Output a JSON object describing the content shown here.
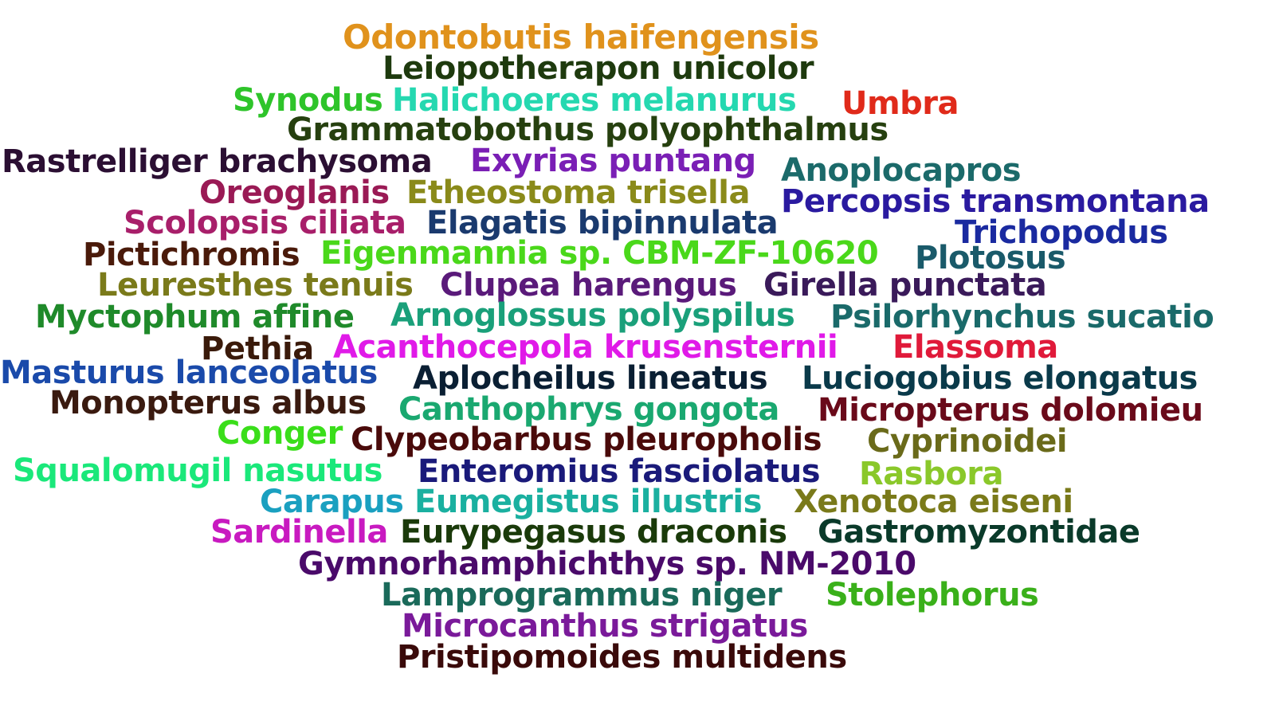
{
  "words": [
    {
      "text": "Odontobutis haifengensis",
      "color": "#e0921c"
    },
    {
      "text": "Leiopotherapon unicolor",
      "color": "#1e3a0e"
    },
    {
      "text": "Synodus",
      "color": "#2ec42a"
    },
    {
      "text": "Halichoeres melanurus",
      "color": "#25d8b0"
    },
    {
      "text": "Umbra",
      "color": "#e02a1a"
    },
    {
      "text": "Grammatobothus polyophthalmus",
      "color": "#26400f"
    },
    {
      "text": "Rastrelliger brachysoma",
      "color": "#2b0f33"
    },
    {
      "text": "Exyrias puntang",
      "color": "#7a1fb5"
    },
    {
      "text": "Anoplocapros",
      "color": "#1b6a6a"
    },
    {
      "text": "Oreoglanis",
      "color": "#9a1a55"
    },
    {
      "text": "Etheostoma trisella",
      "color": "#8a8a1a"
    },
    {
      "text": "Percopsis transmontana",
      "color": "#2a1aa0"
    },
    {
      "text": "Scolopsis ciliata",
      "color": "#a81f6a"
    },
    {
      "text": "Elagatis bipinnulata",
      "color": "#1a3a6e"
    },
    {
      "text": "Trichopodus",
      "color": "#1a2aa0"
    },
    {
      "text": "Pictichromis",
      "color": "#4a1a0a"
    },
    {
      "text": "Eigenmannia sp. CBM-ZF-10620",
      "color": "#4ad81a"
    },
    {
      "text": "Plotosus",
      "color": "#1a5a6a"
    },
    {
      "text": "Leuresthes tenuis",
      "color": "#7a7a1a"
    },
    {
      "text": "Clupea harengus",
      "color": "#5a1a7a"
    },
    {
      "text": "Girella punctata",
      "color": "#3a1a5a"
    },
    {
      "text": "Myctophum affine",
      "color": "#1f8a2a"
    },
    {
      "text": "Arnoglossus polyspilus",
      "color": "#1aa07a"
    },
    {
      "text": "Psilorhynchus sucatio",
      "color": "#1a6a6a"
    },
    {
      "text": "Pethia",
      "color": "#3a1a0a"
    },
    {
      "text": "Acanthocepola krusensternii",
      "color": "#e01ae8"
    },
    {
      "text": "Elassoma",
      "color": "#e01a3a"
    },
    {
      "text": "Masturus lanceolatus",
      "color": "#1a4aaa"
    },
    {
      "text": "Aplocheilus lineatus",
      "color": "#0a1f33"
    },
    {
      "text": "Luciogobius elongatus",
      "color": "#0a3a4a"
    },
    {
      "text": "Monopterus albus",
      "color": "#3a1a0f"
    },
    {
      "text": "Canthophrys gongota",
      "color": "#1aa870"
    },
    {
      "text": "Micropterus dolomieu",
      "color": "#6a0a1a"
    },
    {
      "text": "Conger",
      "color": "#3ade1a"
    },
    {
      "text": "Clypeobarbus pleuropholis",
      "color": "#4a0a0a"
    },
    {
      "text": "Cyprinoidei",
      "color": "#6a6a1a"
    },
    {
      "text": "Squalomugil nasutus",
      "color": "#1ae87a"
    },
    {
      "text": "Enteromius fasciolatus",
      "color": "#1a1a7a"
    },
    {
      "text": "Rasbora",
      "color": "#8ac82a"
    },
    {
      "text": "Carapus",
      "color": "#1aa0c0"
    },
    {
      "text": "Eumegistus illustris",
      "color": "#1ab0a0"
    },
    {
      "text": "Xenotoca eiseni",
      "color": "#7a7a1a"
    },
    {
      "text": "Sardinella",
      "color": "#c81ac0"
    },
    {
      "text": "Eurypegasus draconis",
      "color": "#1a3a0a"
    },
    {
      "text": "Gastromyzontidae",
      "color": "#0a3a2a"
    },
    {
      "text": "Gymnorhamphichthys sp. NM-2010",
      "color": "#4a0a6a"
    },
    {
      "text": "Lamprogrammus niger",
      "color": "#1a6a5a"
    },
    {
      "text": "Stolephorus",
      "color": "#3ab01a"
    },
    {
      "text": "Microcanthus strigatus",
      "color": "#7a1a9a"
    },
    {
      "text": "Pristipomoides multidens",
      "color": "#3a0a0a"
    }
  ]
}
